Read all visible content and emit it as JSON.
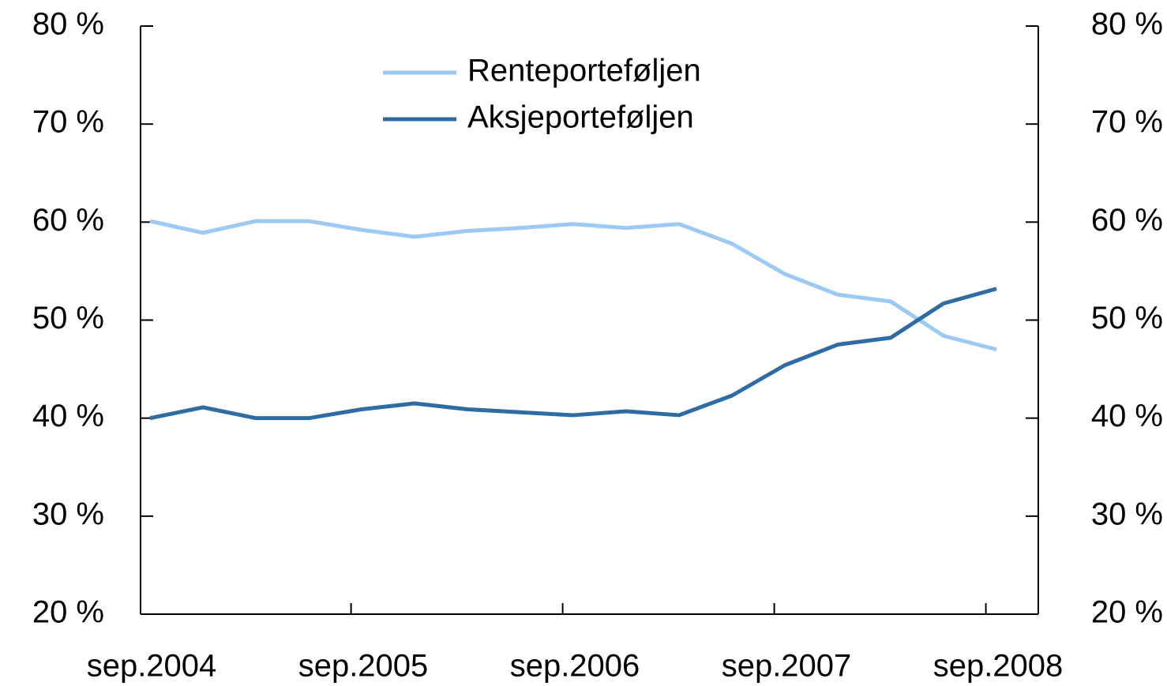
{
  "chart_data": {
    "type": "line",
    "categories": [
      "sep.2004",
      null,
      null,
      null,
      "sep.2005",
      null,
      null,
      null,
      "sep.2006",
      null,
      null,
      null,
      "sep.2007",
      null,
      null,
      null,
      "sep.2008"
    ],
    "series": [
      {
        "name": "Renteporteføljen",
        "color": "#9ccaf5",
        "values": [
          60.1,
          58.9,
          60.1,
          60.1,
          59.2,
          58.5,
          59.1,
          59.4,
          59.8,
          59.4,
          59.8,
          57.8,
          54.7,
          52.6,
          51.9,
          48.4,
          47.0
        ]
      },
      {
        "name": "Aksjeporteføljen",
        "color": "#2f6ca3",
        "values": [
          40.0,
          41.1,
          40.0,
          40.0,
          40.9,
          41.5,
          40.9,
          40.6,
          40.3,
          40.7,
          40.3,
          42.3,
          45.4,
          47.5,
          48.2,
          51.7,
          53.2
        ]
      }
    ],
    "ylim": [
      20,
      80
    ],
    "yticks": [
      {
        "value": 20,
        "label": "20 %"
      },
      {
        "value": 30,
        "label": "30 %"
      },
      {
        "value": 40,
        "label": "40 %"
      },
      {
        "value": 50,
        "label": "50 %"
      },
      {
        "value": 60,
        "label": "60 %"
      },
      {
        "value": 70,
        "label": "70 %"
      },
      {
        "value": 80,
        "label": "80 %"
      }
    ],
    "y2lim": [
      20,
      80
    ],
    "y2ticks": [
      {
        "value": 20,
        "label": "20 %"
      },
      {
        "value": 30,
        "label": "30 %"
      },
      {
        "value": 40,
        "label": "40 %"
      },
      {
        "value": 50,
        "label": "50 %"
      },
      {
        "value": 60,
        "label": "60 %"
      },
      {
        "value": 70,
        "label": "70 %"
      },
      {
        "value": 80,
        "label": "80 %"
      }
    ],
    "legend": "top",
    "grid": false
  }
}
